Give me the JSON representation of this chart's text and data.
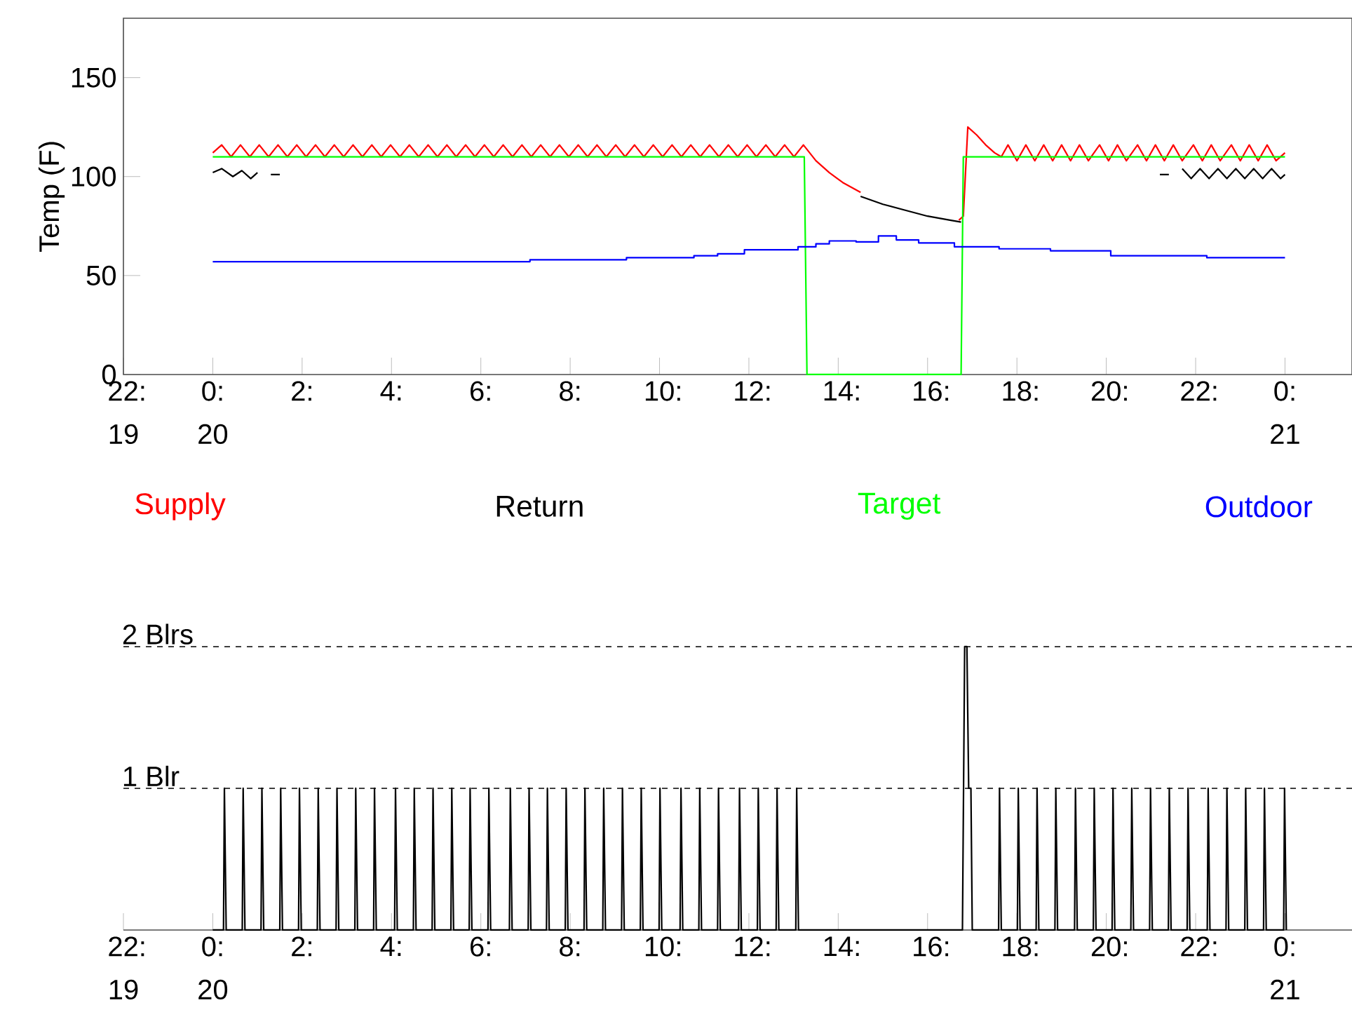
{
  "chart_data": [
    {
      "type": "line",
      "ylabel": "Temp (F)",
      "xlim": [
        -2,
        25.5
      ],
      "ylim": [
        0,
        180
      ],
      "xticks": [
        {
          "value": -2,
          "label": "22: 19"
        },
        {
          "value": 0,
          "label": "0: 20"
        },
        {
          "value": 2,
          "label": "2:"
        },
        {
          "value": 4,
          "label": "4:"
        },
        {
          "value": 6,
          "label": "6:"
        },
        {
          "value": 8,
          "label": "8:"
        },
        {
          "value": 10,
          "label": "10:"
        },
        {
          "value": 12,
          "label": "12:"
        },
        {
          "value": 14,
          "label": "14:"
        },
        {
          "value": 16,
          "label": "16:"
        },
        {
          "value": 18,
          "label": "18:"
        },
        {
          "value": 20,
          "label": "20:"
        },
        {
          "value": 22,
          "label": "22:"
        },
        {
          "value": 24,
          "label": "0: 21"
        }
      ],
      "yticks": [
        0,
        50,
        100,
        150
      ],
      "legend": "bottom",
      "series": [
        {
          "name": "Supply",
          "color": "#ff0000",
          "x": [
            0,
            0.2,
            0.41,
            0.62,
            0.83,
            1.04,
            1.25,
            1.46,
            1.67,
            1.88,
            2.09,
            2.3,
            2.51,
            2.72,
            2.93,
            3.14,
            3.35,
            3.56,
            3.77,
            3.98,
            4.19,
            4.4,
            4.61,
            4.82,
            5.03,
            5.24,
            5.45,
            5.66,
            5.87,
            6.08,
            6.29,
            6.5,
            6.71,
            6.92,
            7.13,
            7.34,
            7.55,
            7.76,
            7.97,
            8.18,
            8.39,
            8.6,
            8.81,
            9.02,
            9.23,
            9.44,
            9.65,
            9.86,
            10.07,
            10.28,
            10.49,
            10.7,
            10.91,
            11.12,
            11.33,
            11.54,
            11.75,
            11.96,
            12.17,
            12.38,
            12.59,
            12.8,
            13.01,
            13.22,
            13.5,
            13.8,
            14.1,
            14.5,
            14.6,
            16.7,
            16.8,
            16.9,
            17.1,
            17.3,
            17.5,
            17.65,
            17.8,
            18.0,
            18.2,
            18.4,
            18.6,
            18.8,
            19.0,
            19.2,
            19.4,
            19.6,
            19.85,
            20.05,
            20.25,
            20.45,
            20.7,
            20.9,
            21.1,
            21.3,
            21.5,
            21.7,
            21.95,
            22.15,
            22.35,
            22.55,
            22.8,
            23.0,
            23.2,
            23.4,
            23.6,
            23.8,
            24.0
          ],
          "values": [
            112,
            116,
            110,
            116,
            110,
            116,
            110,
            116,
            110,
            116,
            110,
            116,
            110,
            116,
            110,
            116,
            110,
            116,
            110,
            116,
            110,
            116,
            110,
            116,
            110,
            116,
            110,
            116,
            110,
            116,
            110,
            116,
            110,
            116,
            110,
            116,
            110,
            116,
            110,
            116,
            110,
            116,
            110,
            116,
            110,
            116,
            110,
            116,
            110,
            116,
            110,
            116,
            110,
            116,
            110,
            116,
            110,
            116,
            110,
            116,
            110,
            116,
            110,
            116,
            108,
            102,
            97,
            92,
            null,
            78,
            80,
            125,
            121,
            116,
            112,
            110,
            116,
            108,
            116,
            108,
            116,
            108,
            116,
            108,
            116,
            108,
            116,
            108,
            116,
            108,
            116,
            108,
            116,
            108,
            116,
            108,
            116,
            108,
            116,
            108,
            116,
            108,
            116,
            108,
            116,
            108,
            112
          ]
        },
        {
          "name": "Return",
          "color": "#000000",
          "x": [
            0,
            0.2,
            0.45,
            0.65,
            0.85,
            1.0,
            1.1,
            1.3,
            1.5,
            1.6,
            14.5,
            15.0,
            15.5,
            16.0,
            16.5,
            16.75,
            17.0,
            21.2,
            21.4,
            21.5,
            21.7,
            21.9,
            22.1,
            22.3,
            22.5,
            22.7,
            22.9,
            23.1,
            23.3,
            23.5,
            23.7,
            23.9,
            24.0
          ],
          "values": [
            102,
            104,
            100,
            103,
            99,
            102,
            null,
            101,
            101,
            null,
            90,
            86,
            83,
            80,
            78,
            77,
            null,
            101,
            101,
            null,
            104,
            99,
            104,
            99,
            104,
            99,
            104,
            99,
            104,
            99,
            104,
            99,
            101
          ]
        },
        {
          "name": "Target",
          "color": "#00ff00",
          "x": [
            0,
            13.24,
            13.3,
            16.75,
            16.8,
            24.0
          ],
          "values": [
            110,
            110,
            0,
            0,
            110,
            110
          ]
        },
        {
          "name": "Outdoor",
          "color": "#0000ff",
          "type": "step",
          "x": [
            0,
            7.1,
            9.26,
            10.77,
            11.3,
            11.9,
            13.1,
            13.5,
            13.8,
            14.4,
            14.9,
            15.3,
            15.8,
            16.6,
            17.6,
            18.75,
            20.1,
            22.25,
            24.0
          ],
          "values": [
            57,
            58,
            59,
            60,
            61,
            63,
            64.5,
            66,
            67.5,
            67,
            70,
            68,
            66.5,
            64.5,
            63.5,
            62.5,
            60,
            59,
            59
          ]
        }
      ]
    },
    {
      "type": "line",
      "xlim": [
        -2,
        25.5
      ],
      "ylim": [
        0,
        2
      ],
      "grid": "y",
      "xticks": [
        {
          "value": -2,
          "label": "22: 19"
        },
        {
          "value": 0,
          "label": "0: 20"
        },
        {
          "value": 2,
          "label": "2:"
        },
        {
          "value": 4,
          "label": "4:"
        },
        {
          "value": 6,
          "label": "6:"
        },
        {
          "value": 8,
          "label": "8:"
        },
        {
          "value": 10,
          "label": "10:"
        },
        {
          "value": 12,
          "label": "12:"
        },
        {
          "value": 14,
          "label": "14:"
        },
        {
          "value": 16,
          "label": "16:"
        },
        {
          "value": 18,
          "label": "18:"
        },
        {
          "value": 20,
          "label": "20:"
        },
        {
          "value": 22,
          "label": "22:"
        },
        {
          "value": 24,
          "label": "0: 21"
        }
      ],
      "yticks": [
        {
          "value": 1,
          "label": "1 Blr"
        },
        {
          "value": 2,
          "label": "2 Blrs"
        }
      ],
      "series": [
        {
          "color": "#000000",
          "x": [
            0,
            0.24,
            0.26,
            0.3,
            0.66,
            0.68,
            0.72,
            1.08,
            1.1,
            1.14,
            1.5,
            1.52,
            1.56,
            1.92,
            1.94,
            1.98,
            2.34,
            2.36,
            2.4,
            2.76,
            2.78,
            2.82,
            3.18,
            3.2,
            3.24,
            3.6,
            3.62,
            3.66,
            4.07,
            4.09,
            4.13,
            4.49,
            4.51,
            4.55,
            4.91,
            4.93,
            4.97,
            5.33,
            5.35,
            5.39,
            5.74,
            5.76,
            5.8,
            6.16,
            6.18,
            6.22,
            6.64,
            6.66,
            6.7,
            7.06,
            7.08,
            7.12,
            7.47,
            7.49,
            7.53,
            7.89,
            7.91,
            7.95,
            8.31,
            8.33,
            8.37,
            8.73,
            8.75,
            8.79,
            9.15,
            9.17,
            9.21,
            9.57,
            9.59,
            9.63,
            9.99,
            10.01,
            10.05,
            10.46,
            10.48,
            10.52,
            10.88,
            10.9,
            10.94,
            11.3,
            11.32,
            11.36,
            11.77,
            11.79,
            11.83,
            12.19,
            12.21,
            12.25,
            12.61,
            12.63,
            12.67,
            13.05,
            13.07,
            13.11,
            16.78,
            16.83,
            16.88,
            16.92,
            16.97,
            17.0,
            17.59,
            17.61,
            17.65,
            18.01,
            18.03,
            18.07,
            18.43,
            18.45,
            18.49,
            18.85,
            18.87,
            18.91,
            19.29,
            19.31,
            19.35,
            19.71,
            19.73,
            19.77,
            20.13,
            20.15,
            20.19,
            20.55,
            20.57,
            20.61,
            20.97,
            20.99,
            21.03,
            21.39,
            21.41,
            21.45,
            21.81,
            21.83,
            21.87,
            22.26,
            22.28,
            22.32,
            22.68,
            22.7,
            22.74,
            23.1,
            23.12,
            23.16,
            23.52,
            23.54,
            23.58,
            23.97,
            23.99,
            24.03
          ],
          "values": [
            0,
            0,
            1,
            0,
            0,
            1,
            0,
            0,
            1,
            0,
            0,
            1,
            0,
            0,
            1,
            0,
            0,
            1,
            0,
            0,
            1,
            0,
            0,
            1,
            0,
            0,
            1,
            0,
            0,
            1,
            0,
            0,
            1,
            0,
            0,
            1,
            0,
            0,
            1,
            0,
            0,
            1,
            0,
            0,
            1,
            0,
            0,
            1,
            0,
            0,
            1,
            0,
            0,
            1,
            0,
            0,
            1,
            0,
            0,
            1,
            0,
            0,
            1,
            0,
            0,
            1,
            0,
            0,
            1,
            0,
            0,
            1,
            0,
            0,
            1,
            0,
            0,
            1,
            0,
            0,
            1,
            0,
            0,
            1,
            0,
            0,
            1,
            0,
            0,
            1,
            0,
            0,
            1,
            0,
            0,
            2,
            2,
            1,
            1,
            0,
            0,
            1,
            0,
            0,
            1,
            0,
            0,
            1,
            0,
            0,
            1,
            0,
            0,
            1,
            0,
            0,
            1,
            0,
            0,
            1,
            0,
            0,
            1,
            0,
            0,
            1,
            0,
            0,
            1,
            0,
            0,
            1,
            0,
            0,
            1,
            0,
            0,
            1,
            0,
            0,
            1,
            0,
            0,
            1,
            0,
            0,
            1,
            0
          ]
        }
      ]
    }
  ]
}
